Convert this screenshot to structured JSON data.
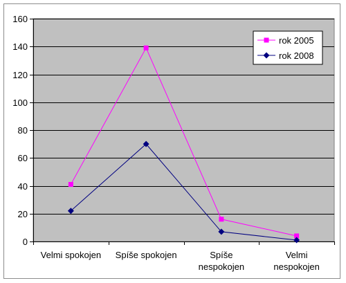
{
  "chart_data": {
    "type": "line",
    "categories": [
      [
        "Velmi spokojen"
      ],
      [
        "Spíše spokojen"
      ],
      [
        "Spíše",
        "nespokojen"
      ],
      [
        "Velmi",
        "nespokojen"
      ]
    ],
    "series": [
      {
        "name": "rok 2005",
        "values": [
          41,
          139,
          16,
          4
        ],
        "color": "#ff00ff",
        "marker": "square"
      },
      {
        "name": "rok 2008",
        "values": [
          22,
          70,
          7,
          1
        ],
        "color": "#000080",
        "marker": "diamond"
      }
    ],
    "ylim": [
      0,
      160
    ],
    "yticks": [
      0,
      20,
      40,
      60,
      80,
      100,
      120,
      140,
      160
    ],
    "plot_background": "#c0c0c0",
    "grid": true,
    "legend": "top-right"
  }
}
